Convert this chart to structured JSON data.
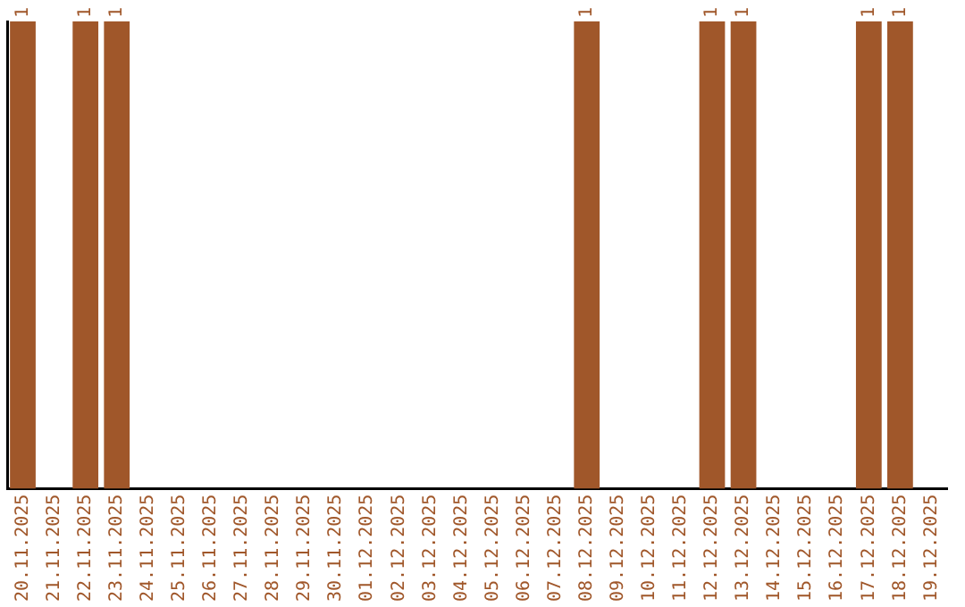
{
  "chart_data": {
    "type": "bar",
    "categories": [
      "20.11.2025",
      "21.11.2025",
      "22.11.2025",
      "23.11.2025",
      "24.11.2025",
      "25.11.2025",
      "26.11.2025",
      "27.11.2025",
      "28.11.2025",
      "29.11.2025",
      "30.11.2025",
      "01.12.2025",
      "02.12.2025",
      "03.12.2025",
      "04.12.2025",
      "05.12.2025",
      "06.12.2025",
      "07.12.2025",
      "08.12.2025",
      "09.12.2025",
      "10.12.2025",
      "11.12.2025",
      "12.12.2025",
      "13.12.2025",
      "14.12.2025",
      "15.12.2025",
      "16.12.2025",
      "17.12.2025",
      "18.12.2025",
      "19.12.2025"
    ],
    "values": [
      1,
      null,
      1,
      1,
      null,
      null,
      null,
      null,
      null,
      null,
      null,
      null,
      null,
      null,
      null,
      null,
      null,
      null,
      1,
      null,
      null,
      null,
      1,
      1,
      null,
      null,
      null,
      1,
      1,
      null
    ],
    "color": "#a0572a",
    "data_labels": true,
    "grid": false,
    "legend": false,
    "tick_labels": "x"
  }
}
